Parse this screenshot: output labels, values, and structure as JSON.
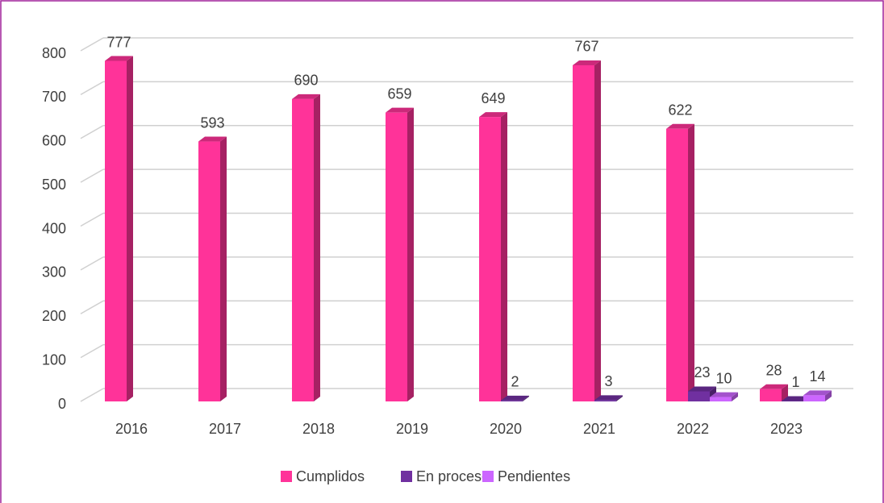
{
  "chart_data": {
    "type": "bar3d",
    "categories": [
      "2016",
      "2017",
      "2018",
      "2019",
      "2020",
      "2021",
      "2022",
      "2023"
    ],
    "series": [
      {
        "name": "Cumplidos",
        "color": "#ff3399",
        "values": [
          777,
          593,
          690,
          659,
          649,
          767,
          622,
          28
        ]
      },
      {
        "name": "En proceso",
        "color": "#7030a0",
        "values": [
          null,
          null,
          null,
          null,
          2,
          3,
          23,
          1
        ]
      },
      {
        "name": "Pendientes",
        "color": "#cc66ff",
        "values": [
          null,
          null,
          null,
          null,
          null,
          null,
          10,
          14
        ]
      }
    ],
    "ylim": [
      0,
      800
    ],
    "yticks": [
      0,
      100,
      200,
      300,
      400,
      500,
      600,
      700,
      800
    ],
    "grid": true,
    "legend": "bottom"
  }
}
